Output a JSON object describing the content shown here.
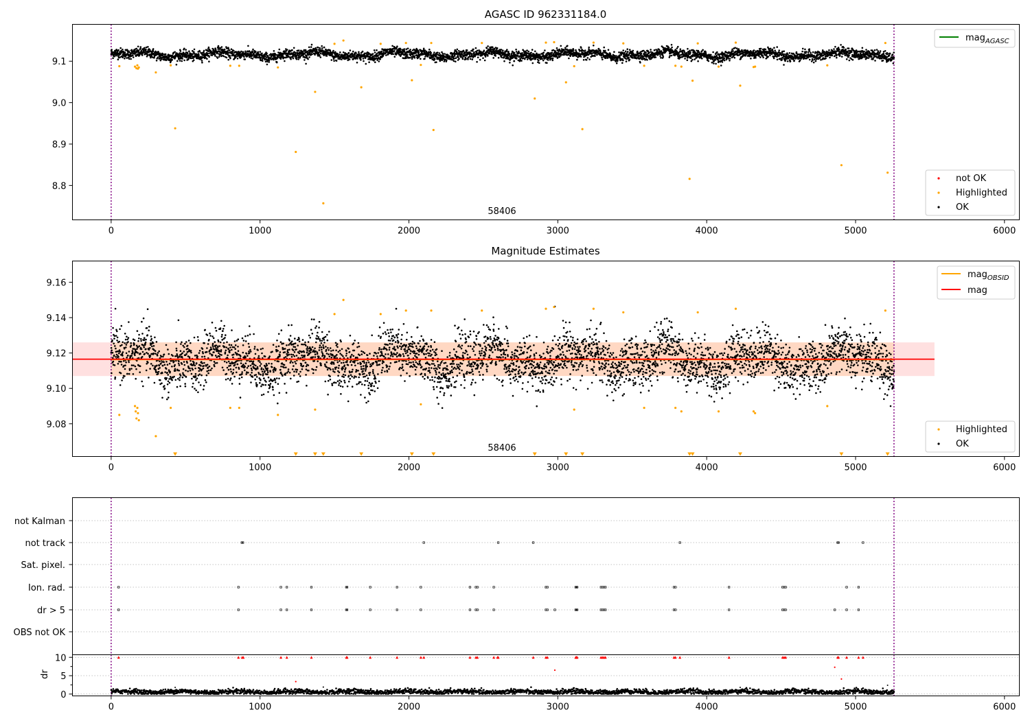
{
  "chart_data": [
    {
      "type": "scatter",
      "title": "AGASC ID 962331184.0",
      "xlim": [
        -260,
        6100
      ],
      "ylim": [
        8.717,
        9.189
      ],
      "xticks": [
        0,
        1000,
        2000,
        3000,
        4000,
        5000,
        6000
      ],
      "yticks": [
        9.1,
        9.0,
        8.9,
        8.8
      ],
      "ytick_labels": [
        "9.1",
        "9.0",
        "8.9",
        "8.8"
      ],
      "obsid_boundaries": [
        0,
        5258
      ],
      "obsid_label": "58406",
      "obsid_label_x": 2630,
      "ok_band": {
        "center": 9.116,
        "amplitude": 0.005,
        "spread": 0.006,
        "x_start": 0,
        "x_end": 5258,
        "n_points": 4200
      },
      "highlighted_points": [
        [
          55,
          9.088
        ],
        [
          160,
          9.087
        ],
        [
          170,
          9.083
        ],
        [
          176,
          9.09
        ],
        [
          180,
          9.082
        ],
        [
          186,
          9.085
        ],
        [
          300,
          9.073
        ],
        [
          400,
          9.09
        ],
        [
          430,
          8.938
        ],
        [
          800,
          9.089
        ],
        [
          860,
          9.089
        ],
        [
          1120,
          9.085
        ],
        [
          1240,
          8.881
        ],
        [
          1370,
          9.026
        ],
        [
          1425,
          8.757
        ],
        [
          1500,
          9.142
        ],
        [
          1560,
          9.15
        ],
        [
          1680,
          9.037
        ],
        [
          1810,
          9.142
        ],
        [
          1980,
          9.144
        ],
        [
          2020,
          9.054
        ],
        [
          2080,
          9.091
        ],
        [
          2150,
          9.144
        ],
        [
          2165,
          8.934
        ],
        [
          2490,
          9.144
        ],
        [
          2845,
          9.01
        ],
        [
          2920,
          9.145
        ],
        [
          2975,
          9.146
        ],
        [
          3055,
          9.049
        ],
        [
          3110,
          9.088
        ],
        [
          3165,
          8.936
        ],
        [
          3240,
          9.145
        ],
        [
          3440,
          9.143
        ],
        [
          3580,
          9.089
        ],
        [
          3790,
          9.089
        ],
        [
          3830,
          9.087
        ],
        [
          3885,
          8.816
        ],
        [
          3905,
          9.053
        ],
        [
          3940,
          9.143
        ],
        [
          4080,
          9.087
        ],
        [
          4195,
          9.145
        ],
        [
          4225,
          9.041
        ],
        [
          4315,
          9.086
        ],
        [
          4325,
          9.087
        ],
        [
          4810,
          9.09
        ],
        [
          4905,
          8.849
        ],
        [
          5200,
          9.144
        ],
        [
          5215,
          8.831
        ]
      ],
      "legend_lines": [
        {
          "label_main": "mag",
          "label_sub": "AGASC",
          "color": "#008000"
        }
      ],
      "legend_points": [
        {
          "label": "not OK",
          "color": "#ff0000"
        },
        {
          "label": "Highlighted",
          "color": "#ffa500"
        },
        {
          "label": "OK",
          "color": "#000000"
        }
      ]
    },
    {
      "type": "scatter",
      "title": "Magnitude Estimates",
      "xlim": [
        -260,
        6100
      ],
      "ylim": [
        9.0615,
        9.172
      ],
      "xticks": [
        0,
        1000,
        2000,
        3000,
        4000,
        5000,
        6000
      ],
      "yticks": [
        9.16,
        9.14,
        9.12,
        9.1,
        9.08
      ],
      "ytick_labels": [
        "9.16",
        "9.14",
        "9.12",
        "9.10",
        "9.08"
      ],
      "obsid_boundaries": [
        0,
        5258
      ],
      "obsid_label": "58406",
      "obsid_label_x": 2630,
      "mag": 9.1165,
      "mag_obsid": 9.1163,
      "band_mag": {
        "x": [
          -260,
          5530
        ],
        "y": [
          9.107,
          9.126
        ]
      },
      "band_obsid": {
        "x": [
          0,
          5258
        ],
        "y": [
          9.107,
          9.126
        ]
      },
      "ok_band": {
        "center": 9.116,
        "amplitude": 0.005,
        "spread": 0.007,
        "x_start": 0,
        "x_end": 5258,
        "n_points": 4200
      },
      "highlighted_points": [
        [
          55,
          9.085
        ],
        [
          160,
          9.09
        ],
        [
          165,
          9.087
        ],
        [
          170,
          9.083
        ],
        [
          176,
          9.089
        ],
        [
          180,
          9.086
        ],
        [
          186,
          9.082
        ],
        [
          300,
          9.073
        ],
        [
          400,
          9.089
        ],
        [
          800,
          9.089
        ],
        [
          860,
          9.089
        ],
        [
          1120,
          9.085
        ],
        [
          1370,
          9.088
        ],
        [
          1500,
          9.142
        ],
        [
          1560,
          9.15
        ],
        [
          1810,
          9.142
        ],
        [
          1980,
          9.144
        ],
        [
          2080,
          9.091
        ],
        [
          2150,
          9.144
        ],
        [
          2490,
          9.144
        ],
        [
          2920,
          9.145
        ],
        [
          2975,
          9.146
        ],
        [
          3110,
          9.088
        ],
        [
          3240,
          9.145
        ],
        [
          3440,
          9.143
        ],
        [
          3580,
          9.089
        ],
        [
          3790,
          9.089
        ],
        [
          3830,
          9.087
        ],
        [
          3940,
          9.143
        ],
        [
          4080,
          9.087
        ],
        [
          4195,
          9.145
        ],
        [
          4315,
          9.087
        ],
        [
          4325,
          9.086
        ],
        [
          4810,
          9.09
        ],
        [
          5200,
          9.144
        ]
      ],
      "below_range_x": [
        430,
        1240,
        1370,
        1425,
        1680,
        2020,
        2165,
        2845,
        3055,
        3165,
        3885,
        3905,
        4225,
        4905,
        5215
      ],
      "legend_lines": [
        {
          "label_main": "mag",
          "label_sub": "OBSID",
          "color": "#ffa500"
        },
        {
          "label_main": "mag",
          "label_sub": "",
          "color": "#ff0000"
        }
      ],
      "legend_points": [
        {
          "label": "Highlighted",
          "color": "#ffa500"
        },
        {
          "label": "OK",
          "color": "#000000"
        }
      ]
    },
    {
      "type": "scatter",
      "title": "",
      "xlim": [
        -260,
        6100
      ],
      "categories": [
        "not Kalman",
        "not track",
        "Sat. pixel.",
        "Ion. rad.",
        "dr > 5",
        "OBS not OK"
      ],
      "obsid_boundaries": [
        0,
        5258
      ],
      "flags": {
        "not track": [
          878,
          885,
          2100,
          2600,
          2835,
          3820,
          4880,
          4885,
          5050
        ],
        "Ion. rad.": [
          50,
          855,
          1140,
          1180,
          1345,
          1580,
          1585,
          1740,
          1920,
          2080,
          2410,
          2450,
          2460,
          2570,
          2920,
          2930,
          3120,
          3125,
          3130,
          3290,
          3300,
          3310,
          3320,
          3780,
          3790,
          4150,
          4510,
          4520,
          4530,
          4940,
          5020
        ],
        "dr > 5": [
          50,
          855,
          1140,
          1180,
          1345,
          1580,
          1585,
          1740,
          1920,
          2080,
          2410,
          2450,
          2460,
          2570,
          2920,
          2930,
          2980,
          3120,
          3125,
          3130,
          3290,
          3300,
          3310,
          3320,
          3780,
          3790,
          4150,
          4510,
          4520,
          4530,
          4860,
          4940,
          5020
        ]
      }
    },
    {
      "type": "scatter",
      "title": "",
      "xlabel": "",
      "ylabel": "dr",
      "xlim": [
        -260,
        6100
      ],
      "ylim": [
        -0.5,
        10.7
      ],
      "xticks": [
        0,
        1000,
        2000,
        3000,
        4000,
        5000,
        6000
      ],
      "yticks": [
        10,
        5,
        0
      ],
      "ytick_labels": [
        "10",
        "5",
        "0"
      ],
      "obsid_boundaries": [
        0,
        5258
      ],
      "dr_clipped_x": [
        50,
        855,
        880,
        888,
        1140,
        1180,
        1345,
        1580,
        1585,
        1740,
        1920,
        2080,
        2100,
        2410,
        2450,
        2460,
        2570,
        2595,
        2600,
        2835,
        2920,
        2930,
        3120,
        3125,
        3130,
        3290,
        3300,
        3310,
        3320,
        3780,
        3790,
        3820,
        4150,
        4510,
        4520,
        4530,
        4880,
        4885,
        4940,
        5020,
        5050
      ],
      "dr_mid_points": [
        [
          1240,
          3.4
        ],
        [
          2980,
          6.5
        ],
        [
          4860,
          7.3
        ],
        [
          4905,
          4.1
        ]
      ],
      "dr_low_band": {
        "center": 0.6,
        "spread": 0.35,
        "x_start": 0,
        "x_end": 5258,
        "n_points": 2600
      },
      "dr_low_outliers": [
        [
          430,
          1.8
        ],
        [
          1425,
          1.9
        ],
        [
          4225,
          1.8
        ],
        [
          5215,
          2.4
        ]
      ]
    }
  ]
}
